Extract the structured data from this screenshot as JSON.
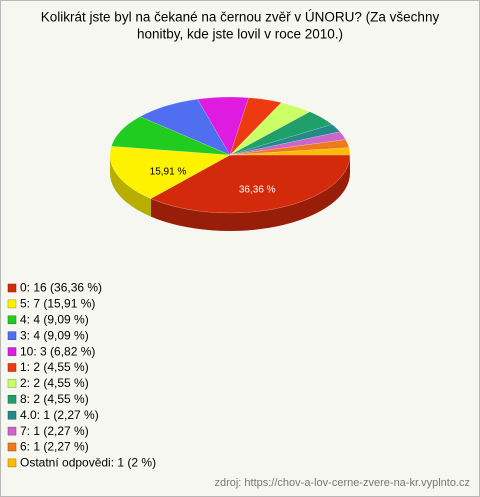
{
  "chart_data": {
    "type": "pie",
    "title": [
      "Kolikrát jste byl na čekané na černou zvěř v ÚNORU? (Za všechny",
      "honitby, kde jste lovil v roce 2010.)"
    ],
    "categories": [
      "0: 16 (36,36 %)",
      "5: 7 (15,91 %)",
      "4: 4 (9,09 %)",
      "3: 4 (9,09 %)",
      "10: 3 (6,82 %)",
      "1: 2 (4,55 %)",
      "2: 2 (4,55 %)",
      "8: 2 (4,55 %)",
      "4.0: 1 (2,27 %)",
      "7: 1 (2,27 %)",
      "6: 1 (2,27 %)",
      "Ostatní odpovědi: 1 (2 %)"
    ],
    "values": [
      36.36,
      15.91,
      9.09,
      9.09,
      6.82,
      4.55,
      4.55,
      4.55,
      2.27,
      2.27,
      2.27,
      2
    ],
    "value_labels": [
      "36,36 %",
      "15,91 %",
      null,
      null,
      null,
      null,
      null,
      null,
      null,
      null,
      null,
      null
    ],
    "colors": [
      "#d42a0c",
      "#fff200",
      "#1fcc1f",
      "#4f6ff0",
      "#e01be0",
      "#ee3a10",
      "#ccff66",
      "#1f9f6a",
      "#238a8a",
      "#cc66cc",
      "#ee7a1e",
      "#ffbb00"
    ],
    "source": "zdroj: https://chov-a-lov-cerne-zvere-na-kr.vyplnto.cz"
  }
}
